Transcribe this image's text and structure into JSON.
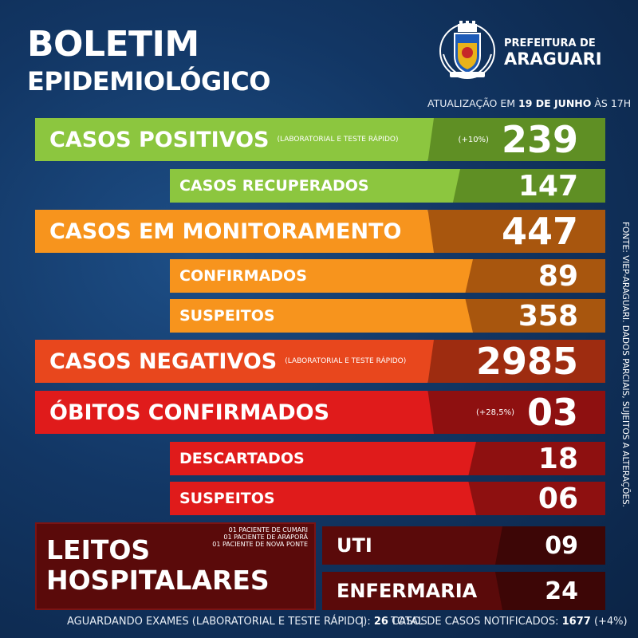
{
  "header": {
    "title_line1": "BOLETIM",
    "title_line2": "EPIDEMIOLÓGICO"
  },
  "logo": {
    "line1": "PREFEITURA DE",
    "line2": "ARAGUARI"
  },
  "update": {
    "prefix": "ATUALIZAÇÃO EM",
    "date": "19 DE JUNHO",
    "suffix": "ÀS 17H"
  },
  "rows": {
    "positivos": {
      "label": "CASOS POSITIVOS",
      "note": "(LABORATORIAL E TESTE RÁPIDO)",
      "pct": "(+10%)",
      "value": "239"
    },
    "recuperados": {
      "label": "CASOS RECUPERADOS",
      "value": "147"
    },
    "monitoramento": {
      "label": "CASOS EM MONITORAMENTO",
      "value": "447"
    },
    "confirmados": {
      "label": "CONFIRMADOS",
      "value": "89"
    },
    "suspeitos_mon": {
      "label": "SUSPEITOS",
      "value": "358"
    },
    "negativos": {
      "label": "CASOS NEGATIVOS",
      "note": "(LABORATORIAL E TESTE RÁPIDO)",
      "value": "2985"
    },
    "obitos": {
      "label": "ÓBITOS CONFIRMADOS",
      "pct": "(+28,5%)",
      "value": "03"
    },
    "descartados": {
      "label": "DESCARTADOS",
      "value": "18"
    },
    "suspeitos_obitos": {
      "label": "SUSPEITOS",
      "value": "06"
    }
  },
  "leitos": {
    "title_line1": "LEITOS",
    "title_line2": "HOSPITALARES",
    "notes": [
      "01 PACIENTE DE CUMARI",
      "01 PACIENTE DE ARAPORÃ",
      "01 PACIENTE DE NOVA PONTE"
    ],
    "uti": {
      "label": "UTI",
      "value": "09"
    },
    "enfermaria": {
      "label": "ENFERMARIA",
      "value": "24"
    }
  },
  "source": "FONTE: VIEP-ARAGUARI. DADOS PARCIAIS, SUJEITOS A ALTERAÇÕES.",
  "footer": {
    "aguardando_label": "AGUARDANDO EXAMES (LABORATORIAL E TESTE RÁPIDO):",
    "aguardando_value": "26",
    "aguardando_unit": "CASOS",
    "separator": "|",
    "total_label": "TOTAL DE CASOS NOTIFICADOS:",
    "total_value": "1677",
    "total_pct": "(+4%)"
  },
  "colors": {
    "green_light": "#8cc63f",
    "green_dark": "#5f8f24",
    "orange_light": "#f7941d",
    "orange_dark": "#a8560e",
    "red_orange": "#e8471d",
    "red_orange_dark": "#9e2c10",
    "red_light": "#e01b1b",
    "red_dark": "#8e1010",
    "maroon": "#5a0a0a",
    "maroon_dark": "#3d0606"
  }
}
